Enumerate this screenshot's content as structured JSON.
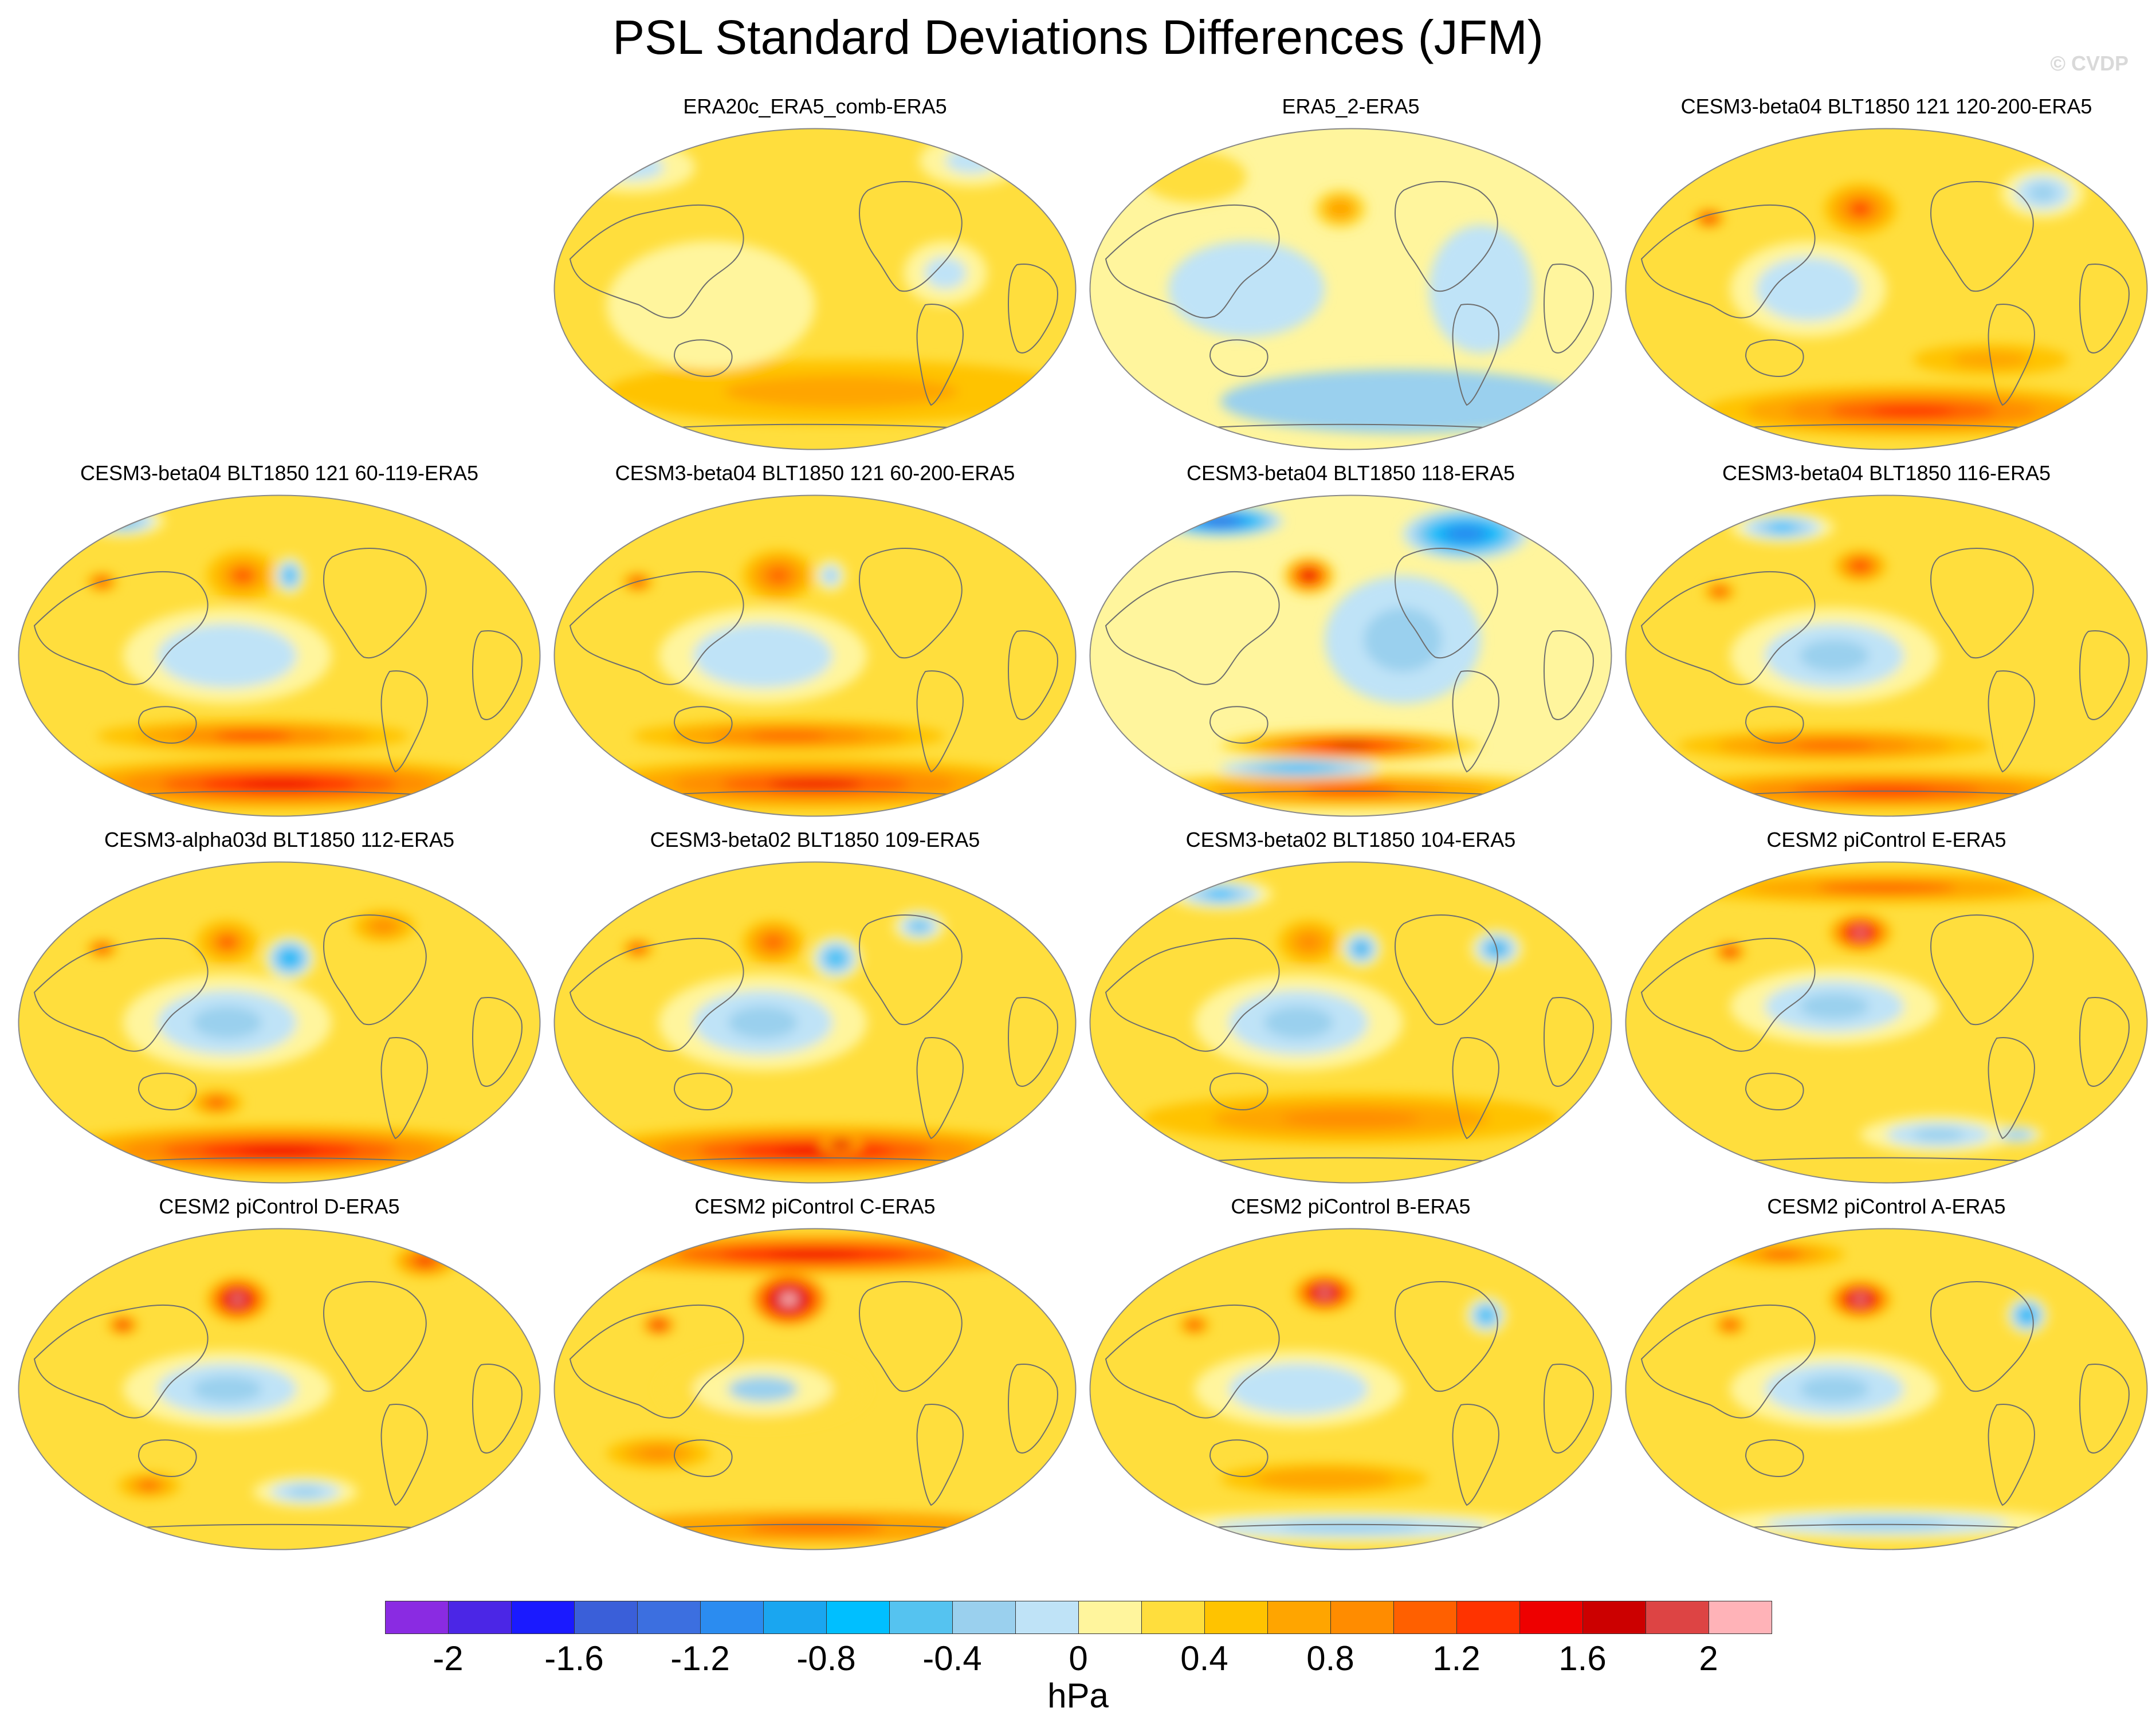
{
  "title": "PSL Standard Deviations Differences (JFM)",
  "watermark": "© CVDP",
  "panels": [
    {
      "title": "ERA20c_ERA5_comb-ERA5",
      "base": 0.2,
      "features": [
        {
          "lon": 0.55,
          "lat": 0.82,
          "v": 0.7,
          "rx": 0.45,
          "ry": 0.1
        },
        {
          "lon": 0.15,
          "lat": 0.12,
          "v": -0.2,
          "rx": 0.12,
          "ry": 0.08
        },
        {
          "lon": 0.75,
          "lat": 0.45,
          "v": -0.2,
          "rx": 0.08,
          "ry": 0.1
        },
        {
          "lon": 0.8,
          "lat": 0.1,
          "v": -0.2,
          "rx": 0.1,
          "ry": 0.08
        },
        {
          "lon": 0.3,
          "lat": 0.55,
          "v": 0.1,
          "rx": 0.2,
          "ry": 0.2
        }
      ]
    },
    {
      "title": "ERA5_2-ERA5",
      "base": 0.05,
      "features": [
        {
          "lon": 0.48,
          "lat": 0.25,
          "v": 0.8,
          "rx": 0.05,
          "ry": 0.06
        },
        {
          "lon": 0.3,
          "lat": 0.5,
          "v": -0.2,
          "rx": 0.15,
          "ry": 0.15
        },
        {
          "lon": 0.6,
          "lat": 0.85,
          "v": -0.25,
          "rx": 0.35,
          "ry": 0.1
        },
        {
          "lon": 0.75,
          "lat": 0.5,
          "v": -0.2,
          "rx": 0.1,
          "ry": 0.2
        },
        {
          "lon": 0.2,
          "lat": 0.15,
          "v": 0.3,
          "rx": 0.1,
          "ry": 0.08
        }
      ]
    },
    {
      "title": "CESM3-beta04 BLT1850 121 120-200-ERA5",
      "base": 0.3,
      "features": [
        {
          "lon": 0.45,
          "lat": 0.25,
          "v": 1.2,
          "rx": 0.07,
          "ry": 0.08
        },
        {
          "lon": 0.16,
          "lat": 0.28,
          "v": 1.5,
          "rx": 0.03,
          "ry": 0.03
        },
        {
          "lon": 0.55,
          "lat": 0.88,
          "v": 1.3,
          "rx": 0.4,
          "ry": 0.08
        },
        {
          "lon": 0.35,
          "lat": 0.5,
          "v": -0.2,
          "rx": 0.15,
          "ry": 0.15
        },
        {
          "lon": 0.8,
          "lat": 0.2,
          "v": -0.3,
          "rx": 0.08,
          "ry": 0.08
        },
        {
          "lon": 0.7,
          "lat": 0.72,
          "v": 0.7,
          "rx": 0.15,
          "ry": 0.05
        }
      ]
    },
    {
      "title": "CESM3-beta04 BLT1850 121 60-119-ERA5",
      "base": 0.3,
      "features": [
        {
          "lon": 0.43,
          "lat": 0.25,
          "v": 1.0,
          "rx": 0.07,
          "ry": 0.08
        },
        {
          "lon": 0.52,
          "lat": 0.25,
          "v": -0.7,
          "rx": 0.03,
          "ry": 0.06
        },
        {
          "lon": 0.16,
          "lat": 0.27,
          "v": 1.3,
          "rx": 0.03,
          "ry": 0.03
        },
        {
          "lon": 0.5,
          "lat": 0.9,
          "v": 1.5,
          "rx": 0.45,
          "ry": 0.08
        },
        {
          "lon": 0.45,
          "lat": 0.75,
          "v": 1.2,
          "rx": 0.3,
          "ry": 0.05
        },
        {
          "lon": 0.4,
          "lat": 0.5,
          "v": -0.2,
          "rx": 0.2,
          "ry": 0.15
        },
        {
          "lon": 0.2,
          "lat": 0.08,
          "v": -0.5,
          "rx": 0.08,
          "ry": 0.05
        }
      ]
    },
    {
      "title": "CESM3-beta04 BLT1850 121 60-200-ERA5",
      "base": 0.3,
      "features": [
        {
          "lon": 0.43,
          "lat": 0.25,
          "v": 1.1,
          "rx": 0.07,
          "ry": 0.08
        },
        {
          "lon": 0.53,
          "lat": 0.25,
          "v": -0.4,
          "rx": 0.03,
          "ry": 0.05
        },
        {
          "lon": 0.16,
          "lat": 0.27,
          "v": 1.3,
          "rx": 0.03,
          "ry": 0.03
        },
        {
          "lon": 0.5,
          "lat": 0.9,
          "v": 1.4,
          "rx": 0.45,
          "ry": 0.08
        },
        {
          "lon": 0.45,
          "lat": 0.75,
          "v": 1.1,
          "rx": 0.3,
          "ry": 0.05
        },
        {
          "lon": 0.4,
          "lat": 0.5,
          "v": -0.2,
          "rx": 0.2,
          "ry": 0.15
        }
      ]
    },
    {
      "title": "CESM3-beta04 BLT1850 118-ERA5",
      "base": 0.15,
      "features": [
        {
          "lon": 0.42,
          "lat": 0.25,
          "v": 1.8,
          "rx": 0.05,
          "ry": 0.06
        },
        {
          "lon": 0.25,
          "lat": 0.08,
          "v": -1.4,
          "rx": 0.12,
          "ry": 0.05
        },
        {
          "lon": 0.72,
          "lat": 0.12,
          "v": -1.2,
          "rx": 0.12,
          "ry": 0.08
        },
        {
          "lon": 0.5,
          "lat": 0.78,
          "v": 1.6,
          "rx": 0.25,
          "ry": 0.05
        },
        {
          "lon": 0.5,
          "lat": 0.92,
          "v": 1.2,
          "rx": 0.45,
          "ry": 0.06
        },
        {
          "lon": 0.4,
          "lat": 0.85,
          "v": -0.6,
          "rx": 0.15,
          "ry": 0.03
        },
        {
          "lon": 0.6,
          "lat": 0.45,
          "v": -0.3,
          "rx": 0.15,
          "ry": 0.2
        }
      ]
    },
    {
      "title": "CESM3-beta04 BLT1850 116-ERA5",
      "base": 0.25,
      "features": [
        {
          "lon": 0.45,
          "lat": 0.22,
          "v": 1.3,
          "rx": 0.05,
          "ry": 0.05
        },
        {
          "lon": 0.18,
          "lat": 0.3,
          "v": 1.2,
          "rx": 0.03,
          "ry": 0.03
        },
        {
          "lon": 0.3,
          "lat": 0.1,
          "v": -0.6,
          "rx": 0.1,
          "ry": 0.05
        },
        {
          "lon": 0.5,
          "lat": 0.92,
          "v": 1.3,
          "rx": 0.45,
          "ry": 0.06
        },
        {
          "lon": 0.4,
          "lat": 0.78,
          "v": 1.0,
          "rx": 0.3,
          "ry": 0.05
        },
        {
          "lon": 0.4,
          "lat": 0.5,
          "v": -0.25,
          "rx": 0.2,
          "ry": 0.15
        }
      ]
    },
    {
      "title": "CESM3-alpha03d BLT1850 112-ERA5",
      "base": 0.3,
      "features": [
        {
          "lon": 0.4,
          "lat": 0.25,
          "v": 1.0,
          "rx": 0.06,
          "ry": 0.07
        },
        {
          "lon": 0.52,
          "lat": 0.3,
          "v": -0.8,
          "rx": 0.05,
          "ry": 0.07
        },
        {
          "lon": 0.16,
          "lat": 0.27,
          "v": 1.3,
          "rx": 0.03,
          "ry": 0.03
        },
        {
          "lon": 0.5,
          "lat": 0.9,
          "v": 1.5,
          "rx": 0.45,
          "ry": 0.08
        },
        {
          "lon": 0.38,
          "lat": 0.75,
          "v": 1.2,
          "rx": 0.05,
          "ry": 0.04
        },
        {
          "lon": 0.4,
          "lat": 0.5,
          "v": -0.25,
          "rx": 0.2,
          "ry": 0.15
        },
        {
          "lon": 0.7,
          "lat": 0.2,
          "v": 0.9,
          "rx": 0.06,
          "ry": 0.05
        }
      ]
    },
    {
      "title": "CESM3-beta02 BLT1850 109-ERA5",
      "base": 0.3,
      "features": [
        {
          "lon": 0.42,
          "lat": 0.25,
          "v": 1.1,
          "rx": 0.06,
          "ry": 0.07
        },
        {
          "lon": 0.54,
          "lat": 0.3,
          "v": -0.7,
          "rx": 0.05,
          "ry": 0.07
        },
        {
          "lon": 0.16,
          "lat": 0.27,
          "v": 1.3,
          "rx": 0.03,
          "ry": 0.03
        },
        {
          "lon": 0.5,
          "lat": 0.9,
          "v": 1.5,
          "rx": 0.45,
          "ry": 0.08
        },
        {
          "lon": 0.55,
          "lat": 0.88,
          "v": 1.8,
          "rx": 0.04,
          "ry": 0.03
        },
        {
          "lon": 0.4,
          "lat": 0.5,
          "v": -0.25,
          "rx": 0.2,
          "ry": 0.15
        },
        {
          "lon": 0.7,
          "lat": 0.2,
          "v": -0.5,
          "rx": 0.05,
          "ry": 0.05
        }
      ]
    },
    {
      "title": "CESM3-beta02 BLT1850 104-ERA5",
      "base": 0.25,
      "features": [
        {
          "lon": 0.42,
          "lat": 0.25,
          "v": 0.9,
          "rx": 0.06,
          "ry": 0.07
        },
        {
          "lon": 0.52,
          "lat": 0.27,
          "v": -0.8,
          "rx": 0.04,
          "ry": 0.06
        },
        {
          "lon": 0.78,
          "lat": 0.27,
          "v": -0.8,
          "rx": 0.05,
          "ry": 0.06
        },
        {
          "lon": 0.25,
          "lat": 0.1,
          "v": -0.6,
          "rx": 0.1,
          "ry": 0.05
        },
        {
          "lon": 0.5,
          "lat": 0.8,
          "v": 0.9,
          "rx": 0.4,
          "ry": 0.08
        },
        {
          "lon": 0.4,
          "lat": 0.5,
          "v": -0.25,
          "rx": 0.2,
          "ry": 0.15
        }
      ]
    },
    {
      "title": "CESM2 piControl E-ERA5",
      "base": 0.35,
      "features": [
        {
          "lon": 0.45,
          "lat": 0.22,
          "v": 2.0,
          "rx": 0.06,
          "ry": 0.06
        },
        {
          "lon": 0.2,
          "lat": 0.28,
          "v": 1.5,
          "rx": 0.03,
          "ry": 0.03
        },
        {
          "lon": 0.5,
          "lat": 0.08,
          "v": 1.0,
          "rx": 0.4,
          "ry": 0.05
        },
        {
          "lon": 0.4,
          "lat": 0.45,
          "v": -0.2,
          "rx": 0.2,
          "ry": 0.12
        },
        {
          "lon": 0.6,
          "lat": 0.85,
          "v": -0.2,
          "rx": 0.15,
          "ry": 0.06
        },
        {
          "lon": 0.75,
          "lat": 0.85,
          "v": -0.4,
          "rx": 0.05,
          "ry": 0.03
        }
      ]
    },
    {
      "title": "CESM2 piControl D-ERA5",
      "base": 0.35,
      "features": [
        {
          "lon": 0.42,
          "lat": 0.22,
          "v": 2.2,
          "rx": 0.06,
          "ry": 0.07
        },
        {
          "lon": 0.2,
          "lat": 0.3,
          "v": 1.5,
          "rx": 0.03,
          "ry": 0.03
        },
        {
          "lon": 0.78,
          "lat": 0.1,
          "v": 1.4,
          "rx": 0.06,
          "ry": 0.05
        },
        {
          "lon": 0.4,
          "lat": 0.5,
          "v": -0.2,
          "rx": 0.2,
          "ry": 0.12
        },
        {
          "lon": 0.25,
          "lat": 0.8,
          "v": 1.0,
          "rx": 0.06,
          "ry": 0.04
        },
        {
          "lon": 0.55,
          "lat": 0.82,
          "v": -0.2,
          "rx": 0.1,
          "ry": 0.05
        }
      ]
    },
    {
      "title": "CESM2 piControl C-ERA5",
      "base": 0.4,
      "features": [
        {
          "lon": 0.45,
          "lat": 0.22,
          "v": 2.3,
          "rx": 0.07,
          "ry": 0.08
        },
        {
          "lon": 0.5,
          "lat": 0.08,
          "v": 1.4,
          "rx": 0.45,
          "ry": 0.06
        },
        {
          "lon": 0.2,
          "lat": 0.3,
          "v": 1.4,
          "rx": 0.03,
          "ry": 0.03
        },
        {
          "lon": 0.4,
          "lat": 0.5,
          "v": -0.2,
          "rx": 0.2,
          "ry": 0.12
        },
        {
          "lon": 0.5,
          "lat": 0.93,
          "v": 1.0,
          "rx": 0.4,
          "ry": 0.05
        },
        {
          "lon": 0.2,
          "lat": 0.7,
          "v": 0.9,
          "rx": 0.1,
          "ry": 0.05
        }
      ]
    },
    {
      "title": "CESM2 piControl B-ERA5",
      "base": 0.3,
      "features": [
        {
          "lon": 0.45,
          "lat": 0.2,
          "v": 2.1,
          "rx": 0.06,
          "ry": 0.06
        },
        {
          "lon": 0.76,
          "lat": 0.27,
          "v": -0.7,
          "rx": 0.04,
          "ry": 0.06
        },
        {
          "lon": 0.2,
          "lat": 0.3,
          "v": 1.3,
          "rx": 0.03,
          "ry": 0.03
        },
        {
          "lon": 0.4,
          "lat": 0.5,
          "v": -0.2,
          "rx": 0.2,
          "ry": 0.12
        },
        {
          "lon": 0.5,
          "lat": 0.93,
          "v": -0.3,
          "rx": 0.4,
          "ry": 0.05
        },
        {
          "lon": 0.45,
          "lat": 0.78,
          "v": 0.8,
          "rx": 0.2,
          "ry": 0.05
        }
      ]
    },
    {
      "title": "CESM2 piControl A-ERA5",
      "base": 0.35,
      "features": [
        {
          "lon": 0.45,
          "lat": 0.22,
          "v": 2.1,
          "rx": 0.06,
          "ry": 0.06
        },
        {
          "lon": 0.77,
          "lat": 0.27,
          "v": -0.9,
          "rx": 0.04,
          "ry": 0.06
        },
        {
          "lon": 0.2,
          "lat": 0.3,
          "v": 1.3,
          "rx": 0.03,
          "ry": 0.03
        },
        {
          "lon": 0.3,
          "lat": 0.08,
          "v": 1.0,
          "rx": 0.12,
          "ry": 0.04
        },
        {
          "lon": 0.4,
          "lat": 0.5,
          "v": -0.2,
          "rx": 0.2,
          "ry": 0.12
        },
        {
          "lon": 0.5,
          "lat": 0.92,
          "v": -0.2,
          "rx": 0.35,
          "ry": 0.05
        }
      ]
    }
  ],
  "colorbar": {
    "colors": [
      "#8a2be2",
      "#4b26e6",
      "#1a1aff",
      "#3a5fd9",
      "#3c6fe0",
      "#2b8cf0",
      "#1aa6f0",
      "#00bfff",
      "#55c3f0",
      "#9ad0ee",
      "#bfe3f7",
      "#fff59d",
      "#ffde3d",
      "#ffc300",
      "#ffa500",
      "#ff8c00",
      "#ff6000",
      "#ff3300",
      "#ee0000",
      "#cc0000",
      "#dd4444",
      "#ffb3b8"
    ],
    "ticks": [
      "-2",
      "-1.6",
      "-1.2",
      "-0.8",
      "-0.4",
      "0",
      "0.4",
      "0.8",
      "1.2",
      "1.6",
      "2"
    ],
    "units": "hPa"
  },
  "chart_data": {
    "type": "heatmap",
    "title": "PSL Standard Deviations Differences (JFM)",
    "colorbar_range": [
      -2,
      2
    ],
    "colorbar_interval": 0.2,
    "units": "hPa",
    "panel_count": 15
  }
}
